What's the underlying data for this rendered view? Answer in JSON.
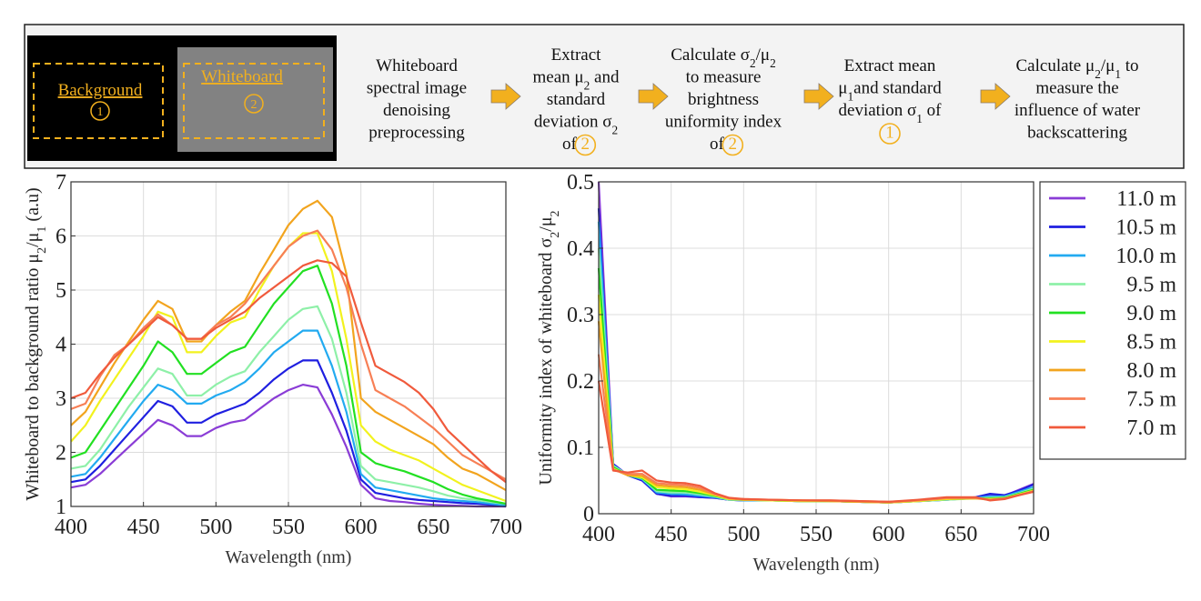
{
  "workflow": {
    "bg_label": "Background",
    "bg_num": "1",
    "wb_label": "Whiteboard",
    "wb_num": "2",
    "steps": [
      {
        "lines": [
          "Whiteboard",
          "spectral image",
          "denoising",
          "preprocessing"
        ]
      },
      {
        "lines": [
          "Extract",
          "mean μ{2} and",
          "standard",
          "deviation σ{2}",
          "of [2]"
        ]
      },
      {
        "lines": [
          "Calculate σ{2}/μ{2}",
          "to measure",
          "brightness",
          "uniformity index",
          "of [2]"
        ]
      },
      {
        "lines": [
          "Extract mean",
          "μ{1}and standard",
          "deviation σ{1} of",
          "[1]"
        ]
      },
      {
        "lines": [
          "Calculate μ{2}/μ{1} to",
          "measure the",
          "influence of water",
          "backscattering"
        ]
      }
    ],
    "arrow_color": "#f2b01e",
    "circle_color": "#f2b01e"
  },
  "legend": [
    "11.0 m",
    "10.5 m",
    "10.0 m",
    "9.5 m",
    "9.0 m",
    "8.5 m",
    "8.0 m",
    "7.5 m",
    "7.0 m"
  ],
  "colors": [
    "#8a3cd6",
    "#1f1fe0",
    "#22aaf0",
    "#8ef0a8",
    "#22e022",
    "#f2f21e",
    "#f2a41e",
    "#f77f55",
    "#f05a3c"
  ],
  "chart_data": [
    {
      "type": "line",
      "title": "",
      "xlabel": "Wavelength (nm)",
      "ylabel": "Whiteboard to background ratio μ{2}/μ{1} (a.u)",
      "xlim": [
        400,
        700
      ],
      "ylim": [
        1,
        7
      ],
      "xticks": [
        400,
        450,
        500,
        550,
        600,
        650,
        700
      ],
      "yticks": [
        1,
        2,
        3,
        4,
        5,
        6,
        7
      ],
      "grid": true,
      "x": [
        400,
        410,
        420,
        430,
        440,
        450,
        460,
        470,
        480,
        490,
        500,
        510,
        520,
        530,
        540,
        550,
        560,
        570,
        580,
        590,
        600,
        610,
        620,
        630,
        640,
        650,
        660,
        670,
        680,
        690,
        700
      ],
      "series": [
        {
          "name": "11.0 m",
          "values": [
            1.35,
            1.4,
            1.6,
            1.85,
            2.1,
            2.35,
            2.6,
            2.5,
            2.3,
            2.3,
            2.45,
            2.55,
            2.6,
            2.8,
            3.0,
            3.15,
            3.25,
            3.2,
            2.7,
            2.1,
            1.4,
            1.15,
            1.1,
            1.08,
            1.05,
            1.03,
            1.02,
            1.01,
            1.0,
            1.0,
            1.0
          ]
        },
        {
          "name": "10.5 m",
          "values": [
            1.45,
            1.5,
            1.75,
            2.05,
            2.35,
            2.65,
            2.95,
            2.85,
            2.55,
            2.55,
            2.7,
            2.8,
            2.9,
            3.1,
            3.35,
            3.55,
            3.7,
            3.7,
            3.1,
            2.4,
            1.5,
            1.25,
            1.2,
            1.15,
            1.12,
            1.1,
            1.08,
            1.06,
            1.05,
            1.03,
            1.0
          ]
        },
        {
          "name": "10.0 m",
          "values": [
            1.55,
            1.6,
            1.9,
            2.25,
            2.6,
            2.95,
            3.25,
            3.15,
            2.9,
            2.9,
            3.05,
            3.15,
            3.3,
            3.55,
            3.85,
            4.05,
            4.25,
            4.25,
            3.6,
            2.75,
            1.6,
            1.35,
            1.3,
            1.25,
            1.2,
            1.15,
            1.12,
            1.1,
            1.08,
            1.05,
            1.02
          ]
        },
        {
          "name": "9.5 m",
          "values": [
            1.7,
            1.75,
            2.05,
            2.45,
            2.85,
            3.2,
            3.55,
            3.45,
            3.05,
            3.05,
            3.25,
            3.4,
            3.5,
            3.85,
            4.15,
            4.45,
            4.65,
            4.7,
            4.1,
            3.1,
            1.75,
            1.5,
            1.45,
            1.4,
            1.35,
            1.28,
            1.2,
            1.15,
            1.12,
            1.08,
            1.05
          ]
        },
        {
          "name": "9.0 m",
          "values": [
            1.9,
            2.0,
            2.4,
            2.8,
            3.2,
            3.6,
            4.05,
            3.85,
            3.45,
            3.45,
            3.65,
            3.85,
            3.95,
            4.35,
            4.75,
            5.05,
            5.35,
            5.45,
            4.75,
            3.6,
            2.0,
            1.8,
            1.72,
            1.65,
            1.55,
            1.45,
            1.32,
            1.22,
            1.15,
            1.1,
            1.05
          ]
        },
        {
          "name": "8.5 m",
          "values": [
            2.2,
            2.5,
            2.95,
            3.35,
            3.75,
            4.15,
            4.6,
            4.5,
            3.85,
            3.85,
            4.15,
            4.4,
            4.5,
            5.0,
            5.45,
            5.8,
            6.05,
            6.05,
            5.35,
            4.1,
            2.5,
            2.2,
            2.05,
            1.95,
            1.85,
            1.7,
            1.55,
            1.4,
            1.3,
            1.2,
            1.1
          ]
        },
        {
          "name": "8.0 m",
          "values": [
            2.5,
            2.75,
            3.2,
            3.65,
            4.05,
            4.45,
            4.8,
            4.65,
            4.05,
            4.05,
            4.35,
            4.6,
            4.8,
            5.3,
            5.75,
            6.2,
            6.5,
            6.65,
            6.35,
            5.3,
            3.0,
            2.75,
            2.6,
            2.45,
            2.3,
            2.15,
            1.9,
            1.7,
            1.6,
            1.45,
            1.3
          ]
        },
        {
          "name": "7.5 m",
          "values": [
            2.8,
            2.9,
            3.4,
            3.8,
            4.0,
            4.3,
            4.55,
            4.35,
            4.1,
            4.1,
            4.35,
            4.5,
            4.75,
            5.1,
            5.45,
            5.8,
            6.0,
            6.1,
            5.75,
            5.05,
            4.0,
            3.15,
            3.0,
            2.85,
            2.65,
            2.45,
            2.2,
            1.95,
            1.8,
            1.65,
            1.5
          ]
        },
        {
          "name": "7.0 m",
          "values": [
            3.0,
            3.1,
            3.45,
            3.75,
            4.0,
            4.25,
            4.5,
            4.35,
            4.1,
            4.1,
            4.3,
            4.45,
            4.6,
            4.85,
            5.05,
            5.25,
            5.45,
            5.55,
            5.5,
            5.25,
            4.4,
            3.6,
            3.45,
            3.3,
            3.1,
            2.8,
            2.4,
            2.15,
            1.9,
            1.65,
            1.45
          ]
        }
      ]
    },
    {
      "type": "line",
      "title": "",
      "xlabel": "Wavelength (nm)",
      "ylabel": "Uniformity index of whiteboard σ{2}/μ{2}",
      "xlim": [
        400,
        700
      ],
      "ylim": [
        0,
        0.5
      ],
      "xticks": [
        400,
        450,
        500,
        550,
        600,
        650,
        700
      ],
      "yticks": [
        0,
        0.1,
        0.2,
        0.3,
        0.4,
        0.5
      ],
      "ytick_labels": [
        "0",
        "0.1",
        "0.2",
        "0.3",
        "0.4",
        "0.5"
      ],
      "grid": true,
      "x": [
        400,
        410,
        420,
        430,
        440,
        450,
        460,
        470,
        480,
        490,
        500,
        520,
        540,
        560,
        580,
        600,
        620,
        640,
        660,
        670,
        680,
        690,
        700
      ],
      "series": [
        {
          "name": "11.0 m",
          "values": [
            0.5,
            0.075,
            0.058,
            0.05,
            0.03,
            0.026,
            0.026,
            0.025,
            0.024,
            0.021,
            0.02,
            0.02,
            0.019,
            0.019,
            0.018,
            0.017,
            0.019,
            0.021,
            0.024,
            0.028,
            0.027,
            0.036,
            0.045
          ]
        },
        {
          "name": "10.5 m",
          "values": [
            0.46,
            0.075,
            0.058,
            0.05,
            0.03,
            0.027,
            0.027,
            0.025,
            0.024,
            0.021,
            0.02,
            0.02,
            0.019,
            0.019,
            0.018,
            0.017,
            0.019,
            0.021,
            0.025,
            0.03,
            0.028,
            0.035,
            0.044
          ]
        },
        {
          "name": "10.0 m",
          "values": [
            0.44,
            0.073,
            0.058,
            0.052,
            0.032,
            0.03,
            0.029,
            0.027,
            0.025,
            0.021,
            0.02,
            0.02,
            0.019,
            0.019,
            0.018,
            0.017,
            0.019,
            0.021,
            0.024,
            0.026,
            0.026,
            0.033,
            0.04
          ]
        },
        {
          "name": "9.5 m",
          "values": [
            0.4,
            0.072,
            0.059,
            0.053,
            0.034,
            0.032,
            0.032,
            0.029,
            0.026,
            0.021,
            0.021,
            0.02,
            0.019,
            0.019,
            0.018,
            0.017,
            0.019,
            0.021,
            0.023,
            0.024,
            0.025,
            0.031,
            0.038
          ]
        },
        {
          "name": "9.0 m",
          "values": [
            0.37,
            0.07,
            0.058,
            0.054,
            0.036,
            0.035,
            0.034,
            0.031,
            0.027,
            0.022,
            0.021,
            0.02,
            0.019,
            0.019,
            0.018,
            0.017,
            0.019,
            0.022,
            0.023,
            0.023,
            0.024,
            0.03,
            0.036
          ]
        },
        {
          "name": "8.5 m",
          "values": [
            0.33,
            0.068,
            0.058,
            0.055,
            0.04,
            0.038,
            0.037,
            0.033,
            0.028,
            0.022,
            0.021,
            0.02,
            0.019,
            0.019,
            0.018,
            0.017,
            0.019,
            0.022,
            0.023,
            0.022,
            0.023,
            0.029,
            0.035
          ]
        },
        {
          "name": "8.0 m",
          "values": [
            0.29,
            0.067,
            0.058,
            0.057,
            0.043,
            0.041,
            0.04,
            0.036,
            0.029,
            0.023,
            0.021,
            0.021,
            0.02,
            0.019,
            0.018,
            0.017,
            0.02,
            0.023,
            0.023,
            0.021,
            0.023,
            0.028,
            0.034
          ]
        },
        {
          "name": "7.5 m",
          "values": [
            0.24,
            0.066,
            0.06,
            0.06,
            0.046,
            0.044,
            0.043,
            0.039,
            0.03,
            0.023,
            0.022,
            0.021,
            0.02,
            0.02,
            0.019,
            0.018,
            0.02,
            0.024,
            0.024,
            0.021,
            0.023,
            0.028,
            0.034
          ]
        },
        {
          "name": "7.0 m",
          "values": [
            0.2,
            0.065,
            0.062,
            0.065,
            0.05,
            0.047,
            0.046,
            0.042,
            0.031,
            0.024,
            0.022,
            0.021,
            0.02,
            0.02,
            0.019,
            0.018,
            0.021,
            0.025,
            0.025,
            0.02,
            0.022,
            0.028,
            0.033
          ]
        }
      ]
    }
  ]
}
